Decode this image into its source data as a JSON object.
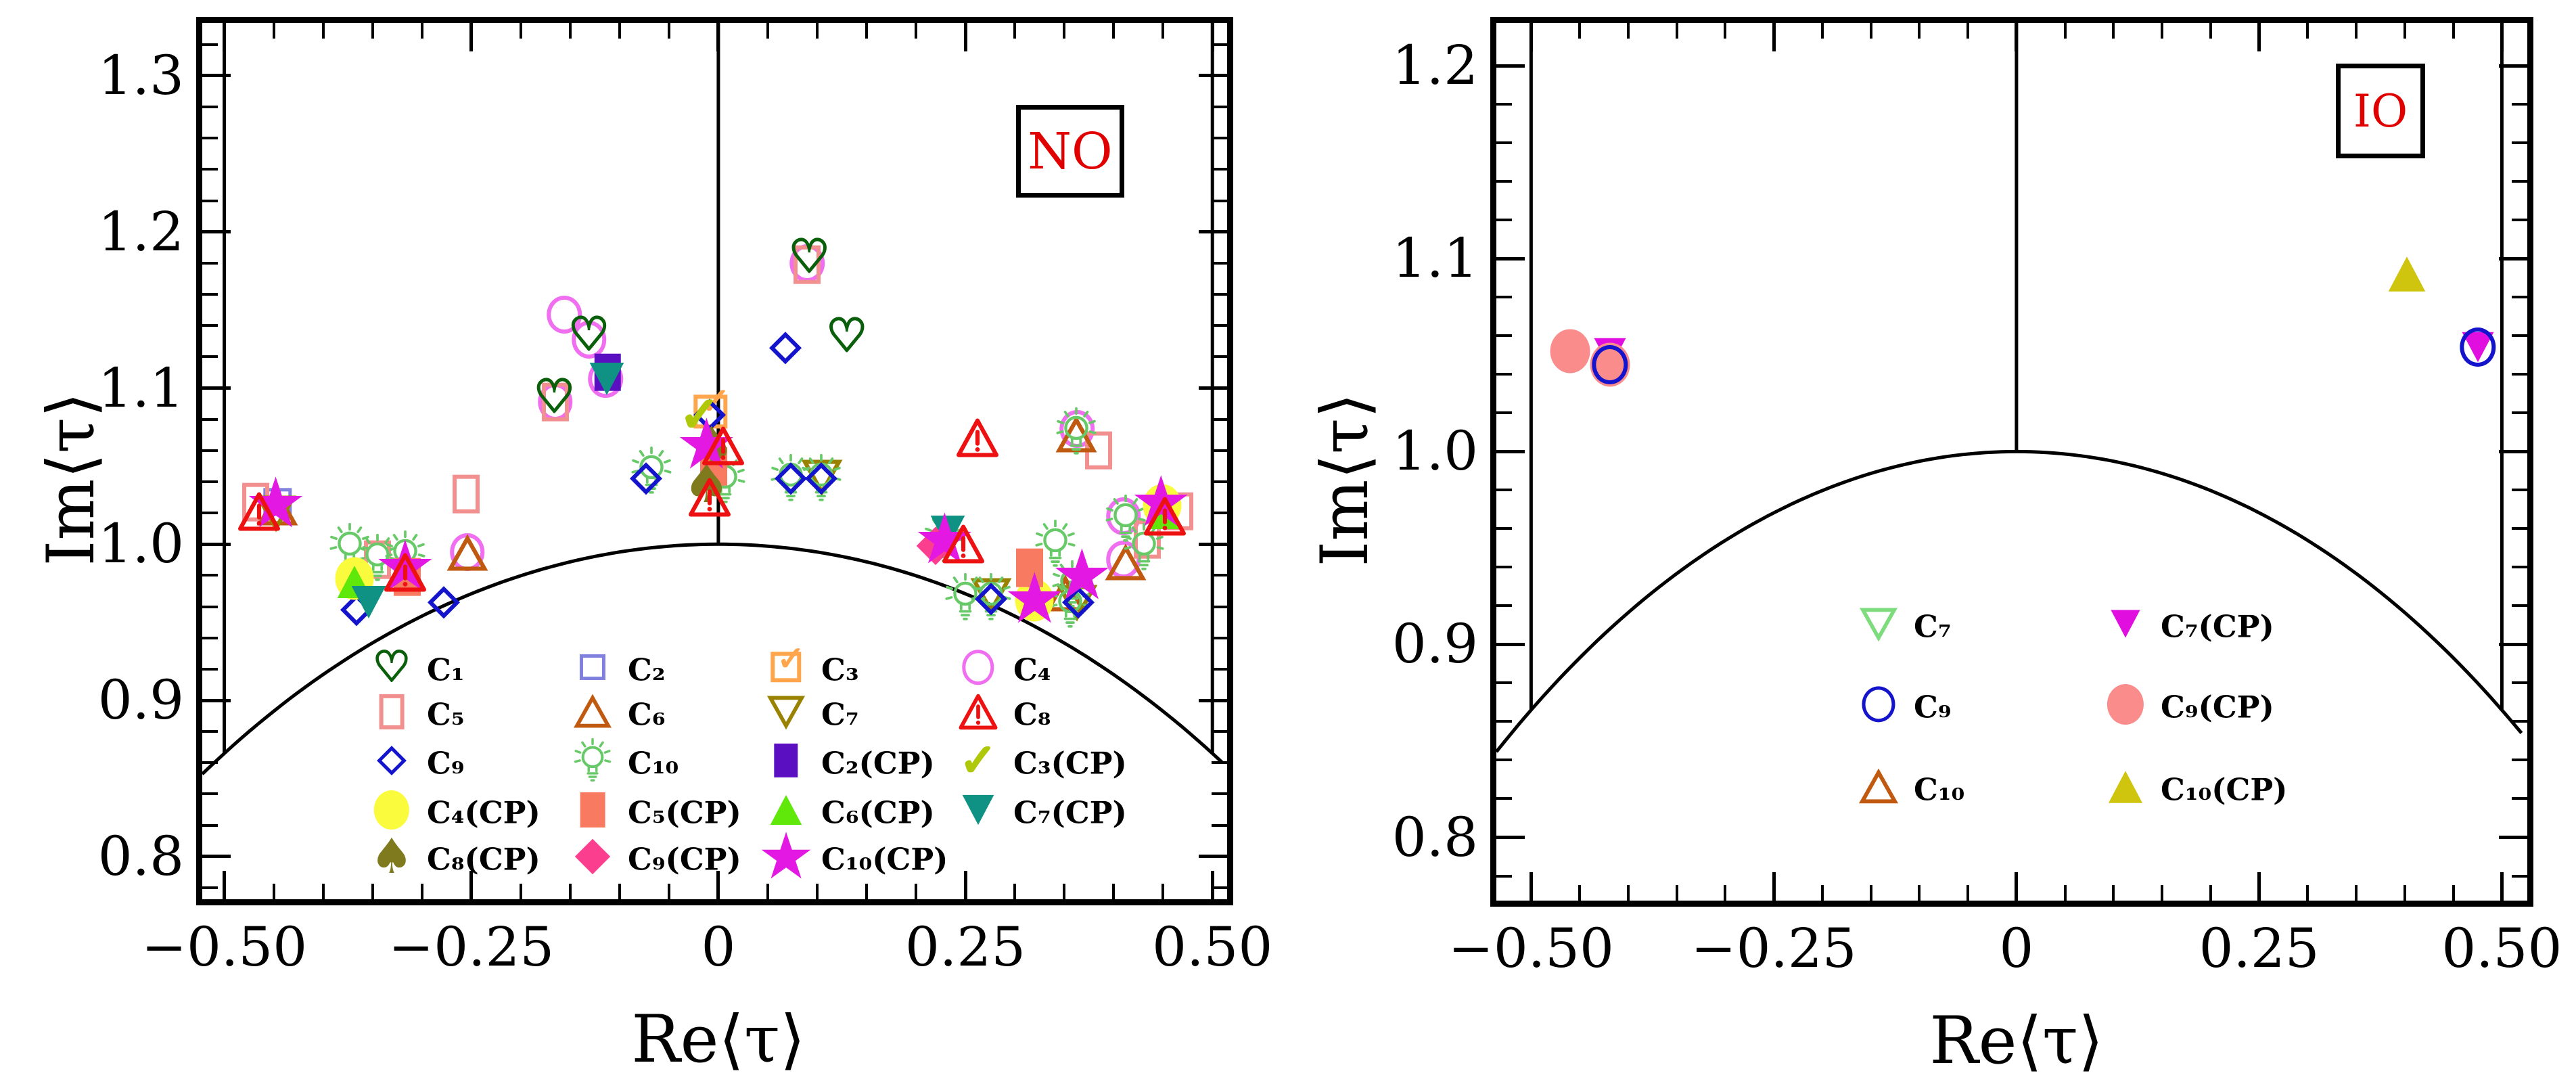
{
  "figure": {
    "description": "Two scatter panels of modular parameter expectation values in the fundamental domain",
    "background": "#ffffff",
    "boundary_color": "#000000",
    "badge_text_color": "#e10000"
  },
  "panels": [
    {
      "id": "NO",
      "corner_label": "NO",
      "xlabel": "Re⟨τ⟩",
      "ylabel": "Im⟨τ⟩",
      "x_ticks": [
        -0.5,
        -0.25,
        0,
        0.25,
        0.5
      ],
      "x_tick_labels": [
        "−0.50",
        "−0.25",
        "0",
        "0.25",
        "0.50"
      ],
      "y_ticks": [
        0.8,
        0.9,
        1.0,
        1.1,
        1.2,
        1.3
      ],
      "y_tick_labels": [
        "0.8",
        "0.9",
        "1.0",
        "1.1",
        "1.2",
        "1.3"
      ],
      "x_minor_step": 0.05,
      "y_minor_step": 0.02,
      "legend_rows": [
        [
          "C1",
          "C2",
          "C3",
          "C4"
        ],
        [
          "C5",
          "C6",
          "C7",
          "C8"
        ],
        [
          "C9",
          "C10",
          "C2CP",
          "C3CP"
        ],
        [
          "C4CP",
          "C5CP",
          "C6CP",
          "C7CP"
        ],
        [
          "C8CP",
          "C9CP",
          "C10CP"
        ]
      ]
    },
    {
      "id": "IO",
      "corner_label": "IO",
      "xlabel": "Re⟨τ⟩",
      "ylabel": "Im⟨τ⟩",
      "x_ticks": [
        -0.5,
        -0.25,
        0,
        0.25,
        0.5
      ],
      "x_tick_labels": [
        "−0.50",
        "−0.25",
        "0",
        "0.25",
        "0.50"
      ],
      "y_ticks": [
        0.8,
        0.9,
        1.0,
        1.1,
        1.2
      ],
      "y_tick_labels": [
        "0.8",
        "0.9",
        "1.0",
        "1.1",
        "1.2"
      ],
      "x_minor_step": 0.05,
      "y_minor_step": 0.02,
      "legend_rows": [
        [
          "IO_C7",
          "IO_C7CP"
        ],
        [
          "IO_C9",
          "IO_C9CP"
        ],
        [
          "IO_C10",
          "IO_C10CP"
        ]
      ]
    }
  ],
  "marker_defs": {
    "C1": {
      "shape": "heart-open",
      "color": "#0a5f0a",
      "size": 60,
      "label": "C₁"
    },
    "C2": {
      "shape": "square-open",
      "color": "#8080de",
      "size": 46,
      "label": "C₂"
    },
    "C3": {
      "shape": "ballot-check",
      "color": "#ffa64d",
      "size": 52,
      "label": "C₃"
    },
    "C4": {
      "shape": "circle-open",
      "color": "#f06ef0",
      "size": 56,
      "label": "C₄"
    },
    "C5": {
      "shape": "rect-open",
      "color": "#f29090",
      "size": 54,
      "label": "C₅"
    },
    "C6": {
      "shape": "tri-open-up",
      "color": "#c05a10",
      "size": 56,
      "label": "C₆"
    },
    "C7": {
      "shape": "tri-open-down",
      "color": "#998200",
      "size": 56,
      "label": "C₇"
    },
    "C8": {
      "shape": "warning",
      "color": "#ee1111",
      "size": 62,
      "label": "C₈"
    },
    "C9": {
      "shape": "diamond-open",
      "color": "#1414cc",
      "size": 48,
      "label": "C₉"
    },
    "C10": {
      "shape": "bulb",
      "color": "#67c967",
      "size": 76,
      "label": "C₁₀"
    },
    "C2CP": {
      "shape": "rect-fill",
      "color": "#5a10c0",
      "size": 52,
      "label": "C₂(CP)"
    },
    "C3CP": {
      "shape": "check",
      "color": "#afc80a",
      "size": 62,
      "label": "C₃(CP)"
    },
    "C4CP": {
      "shape": "circle-fill",
      "color": "#fbfb3d",
      "size": 60,
      "label": "C₄(CP)"
    },
    "C5CP": {
      "shape": "rect-fill",
      "color": "#f87a60",
      "size": 54,
      "label": "C₅(CP)"
    },
    "C6CP": {
      "shape": "tri-fill-up",
      "color": "#5fe80a",
      "size": 54,
      "label": "C₆(CP)"
    },
    "C7CP": {
      "shape": "tri-fill-down",
      "color": "#0f9184",
      "size": 54,
      "label": "C₇(CP)"
    },
    "C8CP": {
      "shape": "spade",
      "color": "#7f7a1e",
      "size": 66,
      "label": "C₈(CP)"
    },
    "C9CP": {
      "shape": "diamond-fill",
      "color": "#fc3e8e",
      "size": 56,
      "label": "C₉(CP)"
    },
    "C10CP": {
      "shape": "star",
      "color": "#e319e3",
      "size": 86,
      "label": "C₁₀(CP)"
    },
    "IO_C7": {
      "shape": "tri-open-down",
      "color": "#7edc7e",
      "size": 56,
      "label": "C₇"
    },
    "IO_C9": {
      "shape": "circle-open",
      "color": "#1414cc",
      "size": 58,
      "label": "C₉"
    },
    "IO_C10": {
      "shape": "tri-open-up",
      "color": "#c05a10",
      "size": 58,
      "label": "C₁₀"
    },
    "IO_C7CP": {
      "shape": "tri-fill-down",
      "color": "#e00fe0",
      "size": 50,
      "label": "C₇(CP)"
    },
    "IO_C9CP": {
      "shape": "circle-fill",
      "color": "#fa8c8c",
      "size": 62,
      "label": "C₉(CP)"
    },
    "IO_C10CP": {
      "shape": "tri-fill-up",
      "color": "#cfc50f",
      "size": 58,
      "label": "C₁₀(CP)"
    }
  },
  "chart_data": [
    {
      "type": "scatter",
      "panel": "NO",
      "title": "NO (normal ordering)",
      "xlabel": "Re⟨τ⟩",
      "ylabel": "Im⟨τ⟩",
      "xlim": [
        -0.5223,
        0.5149
      ],
      "ylim": [
        0.7726,
        1.3338
      ],
      "boundary": "unit arc |tau|=1 plus vertical lines at Re=0 and Re=±0.5",
      "legend_position": "lower center",
      "series": [
        {
          "name": "C4",
          "points": [
            [
              -0.156,
              1.147
            ],
            [
              -0.131,
              1.131
            ],
            [
              -0.114,
              1.106
            ],
            [
              -0.165,
              1.091
            ],
            [
              0.09,
              1.18
            ],
            [
              -0.254,
              0.995
            ],
            [
              0.363,
              1.074
            ],
            [
              0.41,
              1.018
            ],
            [
              0.41,
              0.99
            ]
          ]
        },
        {
          "name": "C2",
          "points": [
            [
              -0.446,
              1.027
            ]
          ]
        },
        {
          "name": "C3",
          "points": [
            [
              -0.008,
              1.085
            ]
          ]
        },
        {
          "name": "C5",
          "points": [
            [
              -0.468,
              1.027
            ],
            [
              -0.345,
              0.99
            ],
            [
              -0.255,
              1.032
            ],
            [
              -0.165,
              1.091
            ],
            [
              0.09,
              1.179
            ],
            [
              0.385,
              1.06
            ],
            [
              0.467,
              1.021
            ],
            [
              0.434,
              1.003
            ]
          ]
        },
        {
          "name": "C6",
          "points": [
            [
              -0.446,
              1.023
            ],
            [
              -0.254,
              0.994
            ],
            [
              0.362,
              1.07
            ],
            [
              0.412,
              0.988
            ],
            [
              0.351,
              0.968
            ]
          ]
        },
        {
          "name": "C7",
          "points": [
            [
              -0.448,
              1.02
            ],
            [
              0.105,
              1.043
            ],
            [
              0.276,
              0.967
            ],
            [
              0.363,
              0.963
            ]
          ]
        },
        {
          "name": "C1",
          "points": [
            [
              -0.131,
              1.134
            ],
            [
              -0.166,
              1.094
            ],
            [
              0.092,
              1.184
            ],
            [
              0.13,
              1.133
            ]
          ]
        },
        {
          "name": "C10",
          "points": [
            [
              -0.373,
              0.998
            ],
            [
              -0.345,
              0.991
            ],
            [
              -0.317,
              0.993
            ],
            [
              -0.068,
              1.047
            ],
            [
              0.007,
              1.041
            ],
            [
              0.073,
              1.042
            ],
            [
              0.104,
              1.042
            ],
            [
              0.362,
              1.072
            ],
            [
              0.412,
              1.016
            ],
            [
              0.431,
              0.998
            ],
            [
              0.341,
              1.0
            ],
            [
              0.358,
              0.974
            ],
            [
              0.356,
              0.961
            ],
            [
              0.25,
              0.966
            ],
            [
              0.276,
              0.966
            ],
            [
              0.229,
              1.003
            ]
          ]
        },
        {
          "name": "C9",
          "points": [
            [
              -0.366,
              0.958
            ],
            [
              -0.278,
              0.963
            ],
            [
              -0.009,
              1.083
            ],
            [
              -0.073,
              1.042
            ],
            [
              0.073,
              1.042
            ],
            [
              0.104,
              1.042
            ],
            [
              0.068,
              1.126
            ],
            [
              0.364,
              0.963
            ],
            [
              0.276,
              0.965
            ]
          ]
        },
        {
          "name": "C2CP",
          "points": [
            [
              -0.112,
              1.11
            ]
          ]
        },
        {
          "name": "C4CP",
          "points": [
            [
              -0.368,
              0.978
            ],
            [
              0.449,
              1.025
            ],
            [
              0.32,
              0.964
            ]
          ]
        },
        {
          "name": "C5CP",
          "points": [
            [
              -0.315,
              0.979
            ],
            [
              -0.005,
              1.05
            ],
            [
              0.315,
              0.985
            ]
          ]
        },
        {
          "name": "C6CP",
          "points": [
            [
              -0.368,
              0.976
            ],
            [
              0.451,
              1.02
            ]
          ]
        },
        {
          "name": "C7CP",
          "points": [
            [
              -0.354,
              0.963
            ],
            [
              -0.113,
              1.106
            ],
            [
              0.232,
              1.008
            ]
          ]
        },
        {
          "name": "C8CP",
          "points": [
            [
              -0.007,
              1.062
            ],
            [
              -0.012,
              1.038
            ]
          ]
        },
        {
          "name": "C9CP",
          "points": [
            [
              0.22,
              0.999
            ]
          ]
        },
        {
          "name": "C3CP",
          "points": [
            [
              -0.019,
              1.083
            ]
          ]
        },
        {
          "name": "C10CP",
          "points": [
            [
              -0.448,
              1.026
            ],
            [
              -0.317,
              0.986
            ],
            [
              -0.012,
              1.064
            ],
            [
              0.448,
              1.027
            ],
            [
              0.368,
              0.98
            ],
            [
              0.32,
              0.965
            ],
            [
              0.229,
              1.003
            ]
          ]
        },
        {
          "name": "C8",
          "points": [
            [
              -0.465,
              1.021
            ],
            [
              -0.317,
              0.982
            ],
            [
              0.005,
              1.063
            ],
            [
              -0.009,
              1.03
            ],
            [
              0.262,
              1.068
            ],
            [
              0.248,
              1.0
            ],
            [
              0.452,
              1.018
            ]
          ]
        }
      ]
    },
    {
      "type": "scatter",
      "panel": "IO",
      "title": "IO (inverted ordering)",
      "xlabel": "Re⟨τ⟩",
      "ylabel": "Im⟨τ⟩",
      "xlim": [
        -0.5358,
        0.5262
      ],
      "ylim": [
        0.7672,
        1.2222
      ],
      "boundary": "unit arc |tau|=1 plus vertical lines at Re=0 and Re=±0.5",
      "legend_position": "lower center",
      "series": [
        {
          "name": "IO_C7CP",
          "points": [
            [
              -0.419,
              1.051
            ],
            [
              0.475,
              1.054
            ]
          ]
        },
        {
          "name": "IO_C9CP",
          "points": [
            [
              -0.46,
              1.052
            ],
            [
              -0.419,
              1.045
            ]
          ]
        },
        {
          "name": "IO_C9",
          "points": [
            [
              -0.419,
              1.045
            ],
            [
              0.475,
              1.054
            ]
          ]
        },
        {
          "name": "IO_C10CP",
          "points": [
            [
              0.402,
              1.092
            ]
          ]
        }
      ]
    }
  ]
}
